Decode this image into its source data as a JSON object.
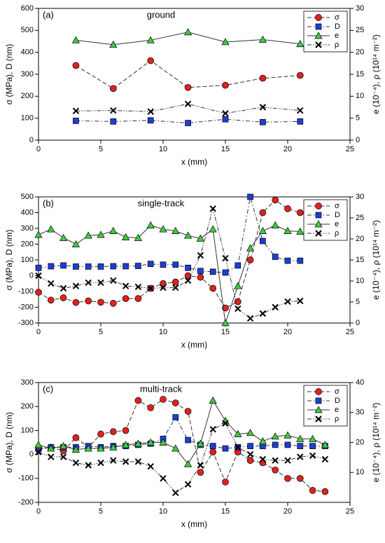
{
  "chart_data": [
    {
      "type": "line",
      "panel_label": "(a)",
      "title": "ground",
      "x_label": "x (mm)",
      "y_label": "σ (MPa), D (nm)",
      "y2_label": "e (10⁻⁴), ρ (10¹⁴ m⁻²)",
      "xlim": [
        0,
        25
      ],
      "xticks": [
        0,
        5,
        10,
        15,
        20,
        25
      ],
      "ylim": [
        0,
        600
      ],
      "yticks": [
        0,
        100,
        200,
        300,
        400,
        500,
        600
      ],
      "y2lim": [
        0,
        30
      ],
      "y2ticks": [
        0,
        5,
        10,
        15,
        20,
        25,
        30
      ],
      "legend": "upper right",
      "x": [
        3,
        6,
        9,
        12,
        15,
        18,
        21
      ],
      "series": [
        {
          "name": "σ",
          "color": "#e3211c",
          "marker": "circle",
          "line_style": "dashed",
          "values": [
            340,
            235,
            362,
            240,
            250,
            282,
            295
          ]
        },
        {
          "name": "D",
          "color": "#1a3fd8",
          "marker": "square",
          "line_style": "dashdot",
          "values": [
            88,
            85,
            90,
            78,
            95,
            82,
            85
          ]
        },
        {
          "name": "e",
          "color": "#3dcc3d",
          "marker": "triangle",
          "line_style": "solid",
          "axis": "y2",
          "values": [
            22.75,
            21.75,
            22.75,
            24.6,
            22.35,
            22.9,
            21.9
          ]
        },
        {
          "name": "ρ",
          "color": "#000000",
          "marker": "x",
          "line_style": "dashdotdot",
          "axis": "y2",
          "values": [
            6.65,
            6.75,
            6.5,
            8.25,
            6.1,
            7.5,
            6.75
          ]
        }
      ]
    },
    {
      "type": "line",
      "panel_label": "(b)",
      "title": "single-track",
      "x_label": "x (mm)",
      "y_label": "σ (MPa), D (nm)",
      "y2_label": "e (10⁻⁴), ρ (10¹⁴ m⁻²)",
      "xlim": [
        0,
        25
      ],
      "xticks": [
        0,
        5,
        10,
        15,
        20,
        25
      ],
      "ylim": [
        -300,
        500
      ],
      "yticks": [
        -300,
        -200,
        -100,
        0,
        100,
        200,
        300,
        400,
        500
      ],
      "y2lim": [
        0,
        30
      ],
      "y2ticks": [
        0,
        5,
        10,
        15,
        20,
        25,
        30
      ],
      "legend": "upper right",
      "x": [
        0,
        1,
        2,
        3,
        4,
        5,
        6,
        7,
        8,
        9,
        10,
        11,
        12,
        13,
        14,
        15,
        16,
        17,
        18,
        19,
        20,
        21
      ],
      "series": [
        {
          "name": "σ",
          "color": "#e3211c",
          "marker": "circle",
          "line_style": "dashed",
          "values": [
            -105,
            -155,
            -140,
            -170,
            -160,
            -168,
            -175,
            -145,
            -145,
            -80,
            -50,
            -40,
            0,
            -10,
            -80,
            -205,
            -165,
            100,
            400,
            480,
            425,
            400
          ]
        },
        {
          "name": "D",
          "color": "#1a3fd8",
          "marker": "square",
          "line_style": "dashdot",
          "values": [
            50,
            60,
            65,
            58,
            58,
            58,
            60,
            60,
            62,
            75,
            70,
            70,
            50,
            30,
            25,
            20,
            65,
            500,
            220,
            120,
            95,
            95
          ]
        },
        {
          "name": "e",
          "color": "#3dcc3d",
          "marker": "triangle",
          "line_style": "solid",
          "axis": "y2",
          "values": [
            21,
            22.3,
            20.25,
            18.75,
            20.8,
            21,
            21.9,
            20.4,
            20.25,
            23.25,
            22.3,
            21.9,
            20.8,
            20.1,
            22.3,
            0,
            8.8,
            17.8,
            21.9,
            23.25,
            21.9,
            21.75
          ]
        },
        {
          "name": "ρ",
          "color": "#000000",
          "marker": "x",
          "line_style": "dashdotdot",
          "axis": "y2",
          "values": [
            11.25,
            9.4,
            8.25,
            8.8,
            9.6,
            9.6,
            10.1,
            8.8,
            8.6,
            8.25,
            8.4,
            8.4,
            10.1,
            16.1,
            27.2,
            15.4,
            3.4,
            1.1,
            2.25,
            3.75,
            5.1,
            5.25
          ]
        }
      ]
    },
    {
      "type": "line",
      "panel_label": "(c)",
      "title": "multi-track",
      "x_label": "x (mm)",
      "y_label": "σ (MPa), D (nm)",
      "y2_label": "e (10⁻⁴), ρ (10¹⁴ m⁻²)",
      "xlim": [
        0,
        25
      ],
      "xticks": [
        0,
        5,
        10,
        15,
        20,
        25
      ],
      "ylim": [
        -200,
        300
      ],
      "yticks": [
        -200,
        -100,
        0,
        100,
        200,
        300
      ],
      "y2lim": [
        0,
        40
      ],
      "y2ticks": [
        10,
        20,
        30,
        40
      ],
      "legend": "upper right",
      "x": [
        0,
        1,
        2,
        3,
        4,
        5,
        6,
        7,
        8,
        9,
        10,
        11,
        12,
        13,
        14,
        15,
        16,
        17,
        18,
        19,
        20,
        21,
        22,
        23
      ],
      "series": [
        {
          "name": "σ",
          "color": "#e3211c",
          "marker": "circle",
          "line_style": "dashed",
          "values": [
            20,
            30,
            15,
            70,
            30,
            85,
            95,
            100,
            225,
            195,
            230,
            215,
            180,
            -75,
            10,
            -115,
            10,
            -25,
            -35,
            -65,
            -100,
            -100,
            -150,
            -155
          ]
        },
        {
          "name": "D",
          "color": "#1a3fd8",
          "marker": "square",
          "line_style": "dashdot",
          "values": [
            25,
            30,
            30,
            30,
            35,
            30,
            35,
            35,
            40,
            45,
            65,
            155,
            60,
            40,
            35,
            25,
            30,
            35,
            35,
            40,
            40,
            35,
            35,
            35
          ]
        },
        {
          "name": "e",
          "color": "#3dcc3d",
          "marker": "triangle",
          "line_style": "solid",
          "axis": "y2",
          "values": [
            19.2,
            18,
            18.8,
            17.6,
            18,
            18,
            18.4,
            19.2,
            19.6,
            20,
            20,
            18,
            12.8,
            19.6,
            34,
            27.2,
            22.8,
            23.2,
            20.4,
            22,
            22.4,
            21.2,
            21.2,
            19.2
          ]
        },
        {
          "name": "ρ",
          "color": "#000000",
          "marker": "x",
          "line_style": "dashdotdot",
          "axis": "y2",
          "values": [
            16.8,
            15.2,
            15.2,
            13.2,
            12.4,
            13.2,
            14,
            13.6,
            13.6,
            12,
            8,
            3.2,
            6,
            12.4,
            24.4,
            26.4,
            18.4,
            16,
            14.4,
            14,
            14,
            15.2,
            15.6,
            14.4
          ]
        }
      ]
    }
  ]
}
